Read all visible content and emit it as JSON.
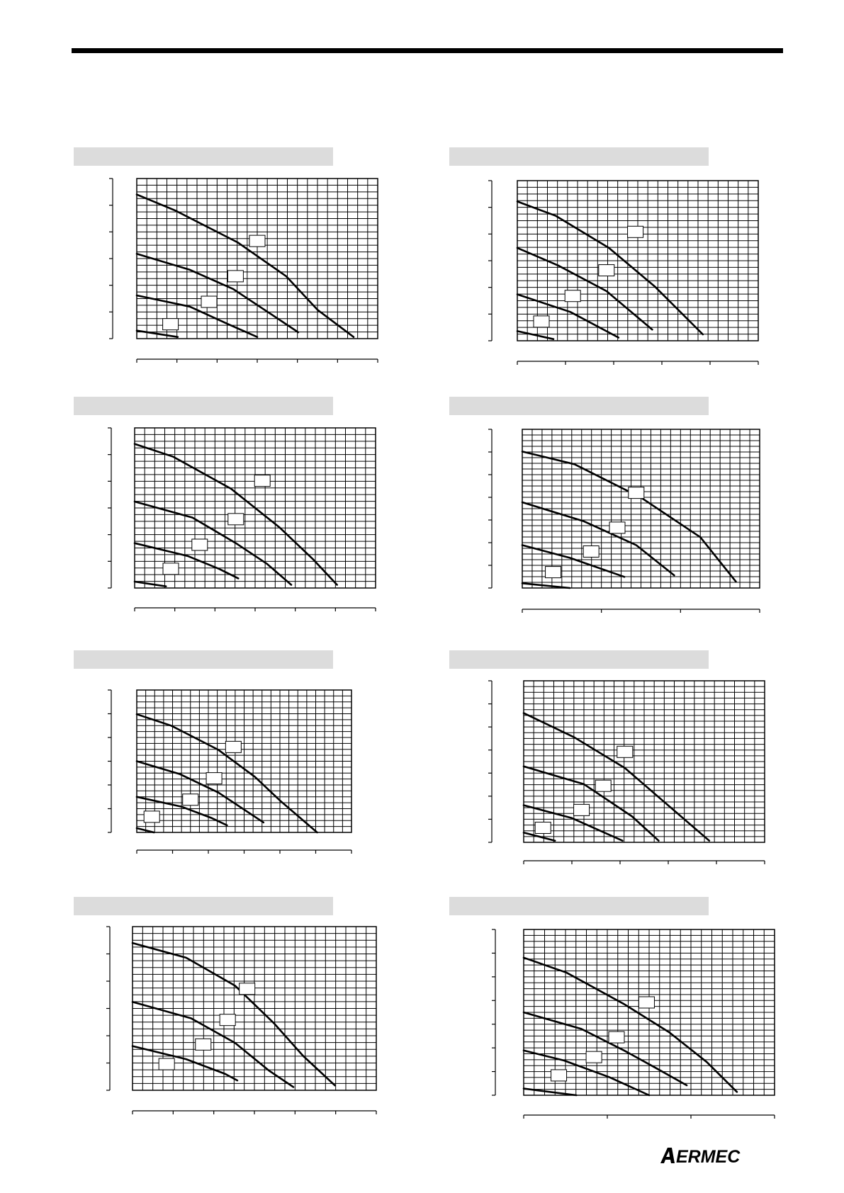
{
  "page": {
    "brand": "AERMEC"
  },
  "chart_data": [
    {
      "type": "line",
      "series": [
        {
          "values": [
            [
              0,
              0.9
            ],
            [
              0.16,
              0.8
            ],
            [
              0.42,
              0.6
            ],
            [
              0.62,
              0.39
            ],
            [
              0.75,
              0.18
            ],
            [
              0.9,
              0.01
            ]
          ]
        },
        {
          "values": [
            [
              0,
              0.53
            ],
            [
              0.22,
              0.43
            ],
            [
              0.4,
              0.31
            ],
            [
              0.55,
              0.16
            ],
            [
              0.67,
              0.04
            ]
          ]
        },
        {
          "values": [
            [
              0,
              0.27
            ],
            [
              0.22,
              0.2
            ],
            [
              0.38,
              0.09
            ],
            [
              0.5,
              0.01
            ]
          ]
        },
        {
          "values": [
            [
              0,
              0.05
            ],
            [
              0.17,
              0.01
            ]
          ]
        }
      ],
      "value_labels": [
        [
          0.5,
          0.61
        ],
        [
          0.41,
          0.39
        ],
        [
          0.3,
          0.23
        ],
        [
          0.14,
          0.09
        ]
      ]
    },
    {
      "type": "line",
      "series": [
        {
          "values": [
            [
              0,
              0.87
            ],
            [
              0.16,
              0.78
            ],
            [
              0.38,
              0.58
            ],
            [
              0.57,
              0.34
            ],
            [
              0.77,
              0.04
            ]
          ]
        },
        {
          "values": [
            [
              0,
              0.58
            ],
            [
              0.17,
              0.47
            ],
            [
              0.37,
              0.31
            ],
            [
              0.56,
              0.07
            ]
          ]
        },
        {
          "values": [
            [
              0,
              0.29
            ],
            [
              0.22,
              0.18
            ],
            [
              0.42,
              0.02
            ]
          ]
        },
        {
          "values": [
            [
              0,
              0.06
            ],
            [
              0.15,
              0.01
            ]
          ]
        }
      ],
      "value_labels": [
        [
          0.49,
          0.68
        ],
        [
          0.37,
          0.44
        ],
        [
          0.23,
          0.28
        ],
        [
          0.1,
          0.12
        ]
      ]
    },
    {
      "type": "line",
      "series": [
        {
          "values": [
            [
              0,
              0.9
            ],
            [
              0.16,
              0.82
            ],
            [
              0.4,
              0.62
            ],
            [
              0.6,
              0.38
            ],
            [
              0.74,
              0.18
            ],
            [
              0.84,
              0.02
            ]
          ]
        },
        {
          "values": [
            [
              0,
              0.54
            ],
            [
              0.24,
              0.44
            ],
            [
              0.42,
              0.28
            ],
            [
              0.55,
              0.15
            ],
            [
              0.65,
              0.02
            ]
          ]
        },
        {
          "values": [
            [
              0,
              0.28
            ],
            [
              0.22,
              0.2
            ],
            [
              0.35,
              0.12
            ],
            [
              0.43,
              0.06
            ]
          ]
        },
        {
          "values": [
            [
              0,
              0.04
            ],
            [
              0.13,
              0.01
            ]
          ]
        }
      ],
      "value_labels": [
        [
          0.53,
          0.67
        ],
        [
          0.42,
          0.43
        ],
        [
          0.27,
          0.27
        ],
        [
          0.15,
          0.12
        ]
      ]
    },
    {
      "type": "line",
      "series": [
        {
          "values": [
            [
              0,
              0.86
            ],
            [
              0.22,
              0.78
            ],
            [
              0.5,
              0.57
            ],
            [
              0.75,
              0.32
            ],
            [
              0.9,
              0.04
            ]
          ]
        },
        {
          "values": [
            [
              0,
              0.54
            ],
            [
              0.26,
              0.42
            ],
            [
              0.48,
              0.27
            ],
            [
              0.64,
              0.08
            ]
          ]
        },
        {
          "values": [
            [
              0,
              0.27
            ],
            [
              0.2,
              0.19
            ],
            [
              0.43,
              0.07
            ]
          ]
        },
        {
          "values": [
            [
              0,
              0.03
            ],
            [
              0.2,
              0.0
            ]
          ]
        }
      ],
      "value_labels": [
        [
          0.48,
          0.6
        ],
        [
          0.4,
          0.38
        ],
        [
          0.29,
          0.23
        ],
        [
          0.13,
          0.1
        ]
      ]
    },
    {
      "type": "line",
      "series": [
        {
          "values": [
            [
              0,
              0.83
            ],
            [
              0.16,
              0.75
            ],
            [
              0.38,
              0.58
            ],
            [
              0.55,
              0.39
            ],
            [
              0.67,
              0.22
            ],
            [
              0.84,
              0.0
            ]
          ]
        },
        {
          "values": [
            [
              0,
              0.5
            ],
            [
              0.2,
              0.41
            ],
            [
              0.38,
              0.28
            ],
            [
              0.59,
              0.07
            ]
          ]
        },
        {
          "values": [
            [
              0,
              0.25
            ],
            [
              0.21,
              0.18
            ],
            [
              0.35,
              0.1
            ],
            [
              0.42,
              0.05
            ]
          ]
        },
        {
          "values": [
            [
              0,
              0.03
            ],
            [
              0.08,
              0.0
            ]
          ]
        }
      ],
      "value_labels": [
        [
          0.45,
          0.6
        ],
        [
          0.36,
          0.38
        ],
        [
          0.25,
          0.23
        ],
        [
          0.07,
          0.11
        ]
      ]
    },
    {
      "type": "line",
      "series": [
        {
          "values": [
            [
              0,
              0.8
            ],
            [
              0.21,
              0.65
            ],
            [
              0.42,
              0.46
            ],
            [
              0.56,
              0.28
            ],
            [
              0.77,
              0.01
            ]
          ]
        },
        {
          "values": [
            [
              0,
              0.47
            ],
            [
              0.25,
              0.36
            ],
            [
              0.45,
              0.16
            ],
            [
              0.56,
              0.01
            ]
          ]
        },
        {
          "values": [
            [
              0,
              0.23
            ],
            [
              0.2,
              0.15
            ],
            [
              0.41,
              0.01
            ]
          ]
        },
        {
          "values": [
            [
              0,
              0.06
            ],
            [
              0.13,
              0.01
            ]
          ]
        }
      ],
      "value_labels": [
        [
          0.42,
          0.56
        ],
        [
          0.33,
          0.35
        ],
        [
          0.24,
          0.2
        ],
        [
          0.08,
          0.09
        ]
      ]
    },
    {
      "type": "line",
      "series": [
        {
          "values": [
            [
              0,
              0.9
            ],
            [
              0.22,
              0.81
            ],
            [
              0.42,
              0.64
            ],
            [
              0.58,
              0.41
            ],
            [
              0.7,
              0.21
            ],
            [
              0.83,
              0.03
            ]
          ]
        },
        {
          "values": [
            [
              0,
              0.54
            ],
            [
              0.24,
              0.44
            ],
            [
              0.42,
              0.29
            ],
            [
              0.56,
              0.12
            ],
            [
              0.66,
              0.02
            ]
          ]
        },
        {
          "values": [
            [
              0,
              0.27
            ],
            [
              0.22,
              0.19
            ],
            [
              0.38,
              0.1
            ],
            [
              0.43,
              0.06
            ]
          ]
        }
      ],
      "value_labels": [
        [
          0.47,
          0.62
        ],
        [
          0.39,
          0.43
        ],
        [
          0.29,
          0.28
        ],
        [
          0.14,
          0.16
        ]
      ]
    },
    {
      "type": "line",
      "series": [
        {
          "values": [
            [
              0,
              0.83
            ],
            [
              0.17,
              0.74
            ],
            [
              0.4,
              0.55
            ],
            [
              0.58,
              0.38
            ],
            [
              0.73,
              0.2
            ],
            [
              0.85,
              0.02
            ]
          ]
        },
        {
          "values": [
            [
              0,
              0.5
            ],
            [
              0.23,
              0.4
            ],
            [
              0.4,
              0.27
            ],
            [
              0.52,
              0.17
            ],
            [
              0.65,
              0.06
            ]
          ]
        },
        {
          "values": [
            [
              0,
              0.27
            ],
            [
              0.16,
              0.21
            ],
            [
              0.34,
              0.11
            ],
            [
              0.5,
              0.0
            ]
          ]
        },
        {
          "values": [
            [
              0,
              0.04
            ],
            [
              0.21,
              0.0
            ]
          ]
        }
      ],
      "value_labels": [
        [
          0.49,
          0.56
        ],
        [
          0.37,
          0.35
        ],
        [
          0.28,
          0.23
        ],
        [
          0.14,
          0.12
        ]
      ]
    }
  ]
}
